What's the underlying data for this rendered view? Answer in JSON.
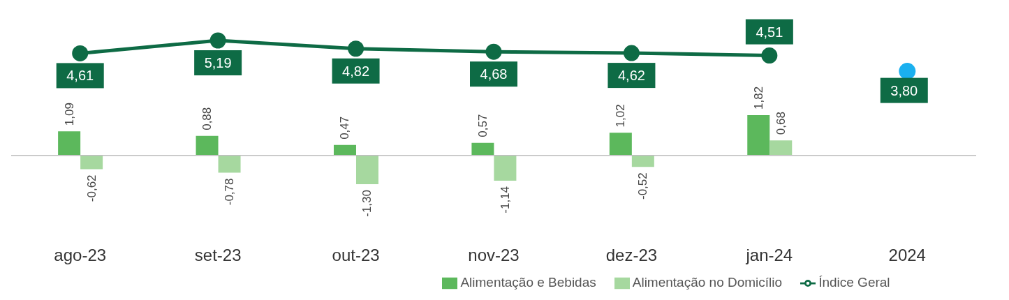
{
  "chart_data": {
    "type": "bar",
    "categories": [
      "ago-23",
      "set-23",
      "out-23",
      "nov-23",
      "dez-23",
      "jan-24",
      "2024"
    ],
    "series": [
      {
        "name": "Alimentação e Bebidas",
        "color": "#5cb85c",
        "values": [
          1.09,
          0.88,
          0.47,
          0.57,
          1.02,
          1.82,
          null
        ],
        "value_labels": [
          "1,09",
          "0,88",
          "0,47",
          "0,57",
          "1,02",
          "1,82",
          null
        ]
      },
      {
        "name": "Alimentação no Domicílio",
        "type": "bar",
        "color": "#a6d89f",
        "values": [
          -0.62,
          -0.78,
          -1.3,
          -1.14,
          -0.52,
          0.68,
          null
        ],
        "value_labels": [
          "-0,62",
          "-0,78",
          "-1,30",
          "-1,14",
          "-0,52",
          "0,68",
          null
        ]
      },
      {
        "name": "Índice Geral",
        "type": "line",
        "color": "#0e6b45",
        "values": [
          4.61,
          5.19,
          4.82,
          4.68,
          4.62,
          4.51,
          null
        ],
        "value_labels": [
          "4,61",
          "5,19",
          "4,82",
          "4,68",
          "4,62",
          "4,51",
          null
        ]
      },
      {
        "type": "scatter",
        "color": "#1ab0ef",
        "values": [
          null,
          null,
          null,
          null,
          null,
          null,
          3.8
        ],
        "value_labels": [
          null,
          null,
          null,
          null,
          null,
          null,
          "3,80"
        ]
      }
    ],
    "tick_labels": "x",
    "legend": "bottom",
    "marker": "circle",
    "grid": false
  }
}
